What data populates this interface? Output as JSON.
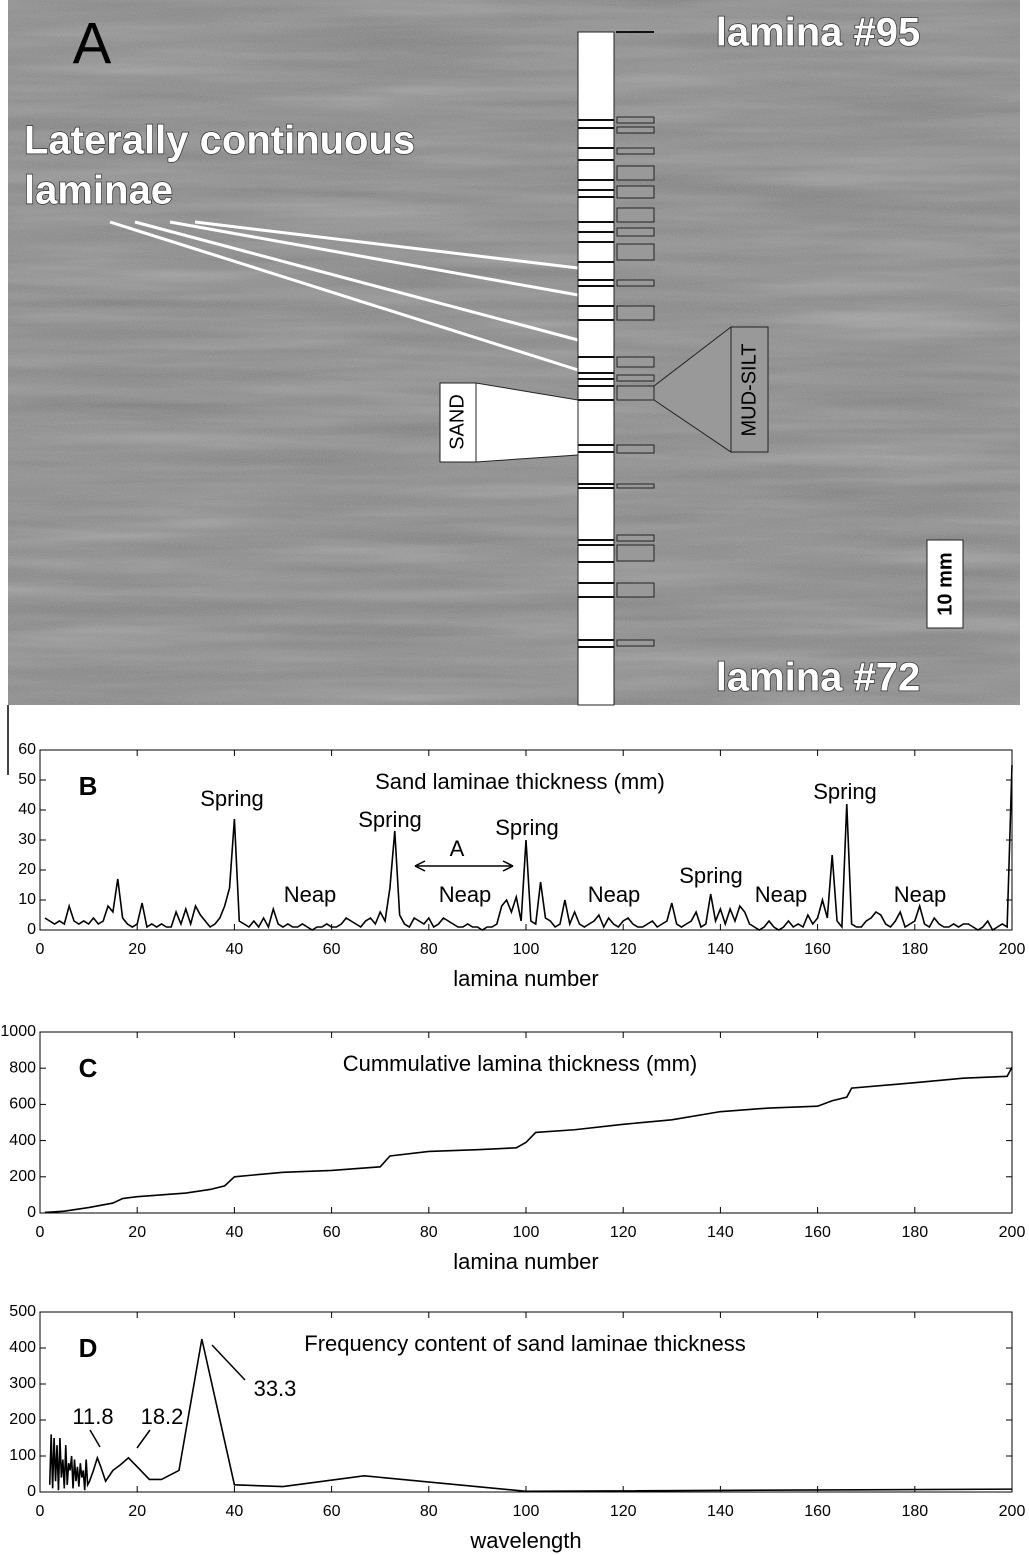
{
  "panel_a": {
    "label": "A",
    "top_lamina": "lamina #95",
    "bottom_lamina": "lamina #72",
    "annotation_lines": [
      "Laterally continuous",
      "laminae"
    ],
    "sand": "SAND",
    "mud_silt": "MUD-SILT",
    "scale_bar": "10 mm"
  },
  "chart_data": [
    {
      "type": "line",
      "panel_label": "B",
      "title": "Sand laminae thickness (mm)",
      "x_label": "lamina number",
      "color": "#000000",
      "annotations": [
        "Spring",
        "Spring",
        "Spring",
        "Spring",
        "Spring",
        "Neap",
        "Neap",
        "Neap",
        "Neap",
        "Neap",
        "A"
      ],
      "x": [
        1,
        2,
        3,
        4,
        5,
        6,
        7,
        8,
        9,
        10,
        11,
        12,
        13,
        14,
        15,
        16,
        17,
        18,
        19,
        20,
        21,
        22,
        23,
        24,
        25,
        26,
        27,
        28,
        29,
        30,
        31,
        32,
        33,
        34,
        35,
        36,
        37,
        38,
        39,
        40,
        41,
        42,
        43,
        44,
        45,
        46,
        47,
        48,
        49,
        50,
        51,
        52,
        53,
        54,
        55,
        56,
        57,
        58,
        59,
        60,
        61,
        62,
        63,
        64,
        65,
        66,
        67,
        68,
        69,
        70,
        71,
        72,
        73,
        74,
        75,
        76,
        77,
        78,
        79,
        80,
        81,
        82,
        83,
        84,
        85,
        86,
        87,
        88,
        89,
        90,
        91,
        92,
        93,
        94,
        95,
        96,
        97,
        98,
        99,
        100,
        101,
        102,
        103,
        104,
        105,
        106,
        107,
        108,
        109,
        110,
        111,
        112,
        113,
        114,
        115,
        116,
        117,
        118,
        119,
        120,
        121,
        122,
        123,
        124,
        125,
        126,
        127,
        128,
        129,
        130,
        131,
        132,
        133,
        134,
        135,
        136,
        137,
        138,
        139,
        140,
        141,
        142,
        143,
        144,
        145,
        146,
        147,
        148,
        149,
        150,
        151,
        152,
        153,
        154,
        155,
        156,
        157,
        158,
        159,
        160,
        161,
        162,
        163,
        164,
        165,
        166,
        167,
        168,
        169,
        170,
        171,
        172,
        173,
        174,
        175,
        176,
        177,
        178,
        179,
        180,
        181,
        182,
        183,
        184,
        185,
        186,
        187,
        188,
        189,
        190,
        191,
        192,
        193,
        194,
        195,
        196,
        197,
        198,
        199,
        200
      ],
      "values": [
        4,
        3,
        2,
        3,
        2,
        8,
        3,
        2,
        3,
        2,
        4,
        2,
        3,
        8,
        6,
        17,
        4,
        2,
        1,
        2,
        9,
        1,
        2,
        1,
        2,
        1,
        1,
        6,
        2,
        7,
        2,
        8,
        5,
        3,
        1,
        2,
        4,
        8,
        14,
        37,
        3,
        2,
        1,
        3,
        1,
        4,
        1,
        7,
        2,
        1,
        2,
        1,
        1,
        2,
        1,
        0,
        1,
        1,
        2,
        1,
        1,
        2,
        4,
        3,
        2,
        1,
        3,
        4,
        2,
        6,
        3,
        14,
        33,
        5,
        2,
        1,
        4,
        3,
        2,
        4,
        1,
        2,
        4,
        3,
        2,
        1,
        1,
        2,
        1,
        1,
        0,
        1,
        1,
        2,
        8,
        10,
        6,
        11,
        3,
        30,
        3,
        2,
        16,
        4,
        3,
        1,
        2,
        10,
        2,
        6,
        2,
        1,
        2,
        3,
        5,
        1,
        4,
        2,
        1,
        3,
        4,
        2,
        1,
        1,
        2,
        3,
        1,
        2,
        3,
        9,
        2,
        1,
        2,
        3,
        6,
        1,
        2,
        12,
        3,
        7,
        2,
        7,
        3,
        8,
        6,
        2,
        1,
        0,
        1,
        3,
        1,
        0,
        1,
        3,
        1,
        2,
        1,
        5,
        2,
        4,
        10,
        4,
        25,
        3,
        1,
        42,
        2,
        1,
        1,
        3,
        4,
        6,
        5,
        2,
        1,
        3,
        6,
        1,
        2,
        3,
        8,
        2,
        1,
        4,
        2,
        1,
        1,
        2,
        1,
        2,
        2,
        1,
        0,
        1,
        3,
        0,
        1,
        2,
        1,
        55
      ],
      "xlim": [
        0,
        200
      ],
      "xticks": [
        0,
        20,
        40,
        60,
        80,
        100,
        120,
        140,
        160,
        180,
        200
      ],
      "ylim": [
        0,
        60
      ],
      "yticks": [
        0,
        10,
        20,
        30,
        40,
        50,
        60
      ]
    },
    {
      "type": "line",
      "panel_label": "C",
      "title": "Cummulative lamina thickness (mm)",
      "x_label": "lamina number",
      "color": "#000000",
      "x": [
        1,
        5,
        10,
        15,
        17,
        20,
        30,
        35,
        38,
        40,
        50,
        60,
        70,
        72,
        80,
        90,
        98,
        100,
        102,
        110,
        120,
        130,
        140,
        150,
        160,
        163,
        166,
        167,
        180,
        190,
        199,
        200
      ],
      "values": [
        3,
        10,
        30,
        55,
        80,
        90,
        110,
        130,
        150,
        200,
        225,
        235,
        255,
        315,
        340,
        350,
        360,
        390,
        445,
        460,
        490,
        515,
        560,
        580,
        590,
        620,
        640,
        690,
        720,
        745,
        755,
        805
      ],
      "xlim": [
        0,
        200
      ],
      "xticks": [
        0,
        20,
        40,
        60,
        80,
        100,
        120,
        140,
        160,
        180,
        200
      ],
      "ylim": [
        0,
        1000
      ],
      "yticks": [
        0,
        200,
        400,
        600,
        800,
        1000
      ]
    },
    {
      "type": "line",
      "panel_label": "D",
      "title": "Frequency content of sand laminae thickness",
      "x_label": "wavelength",
      "color": "#000000",
      "annotations": [
        "11.8",
        "18.2",
        "33.3"
      ],
      "x": [
        2,
        2.3,
        2.6,
        2.9,
        3.2,
        3.5,
        3.8,
        4.1,
        4.4,
        4.7,
        5,
        5.3,
        5.6,
        5.9,
        6.2,
        6.5,
        6.8,
        7.1,
        7.4,
        7.7,
        8,
        8.3,
        8.6,
        8.9,
        9.2,
        9.5,
        9.8,
        10.2,
        11,
        11.8,
        12.5,
        13.5,
        15,
        16.5,
        18.2,
        20,
        22.5,
        25,
        28.6,
        33.3,
        40,
        50,
        66.7,
        100,
        200
      ],
      "values": [
        20,
        160,
        10,
        150,
        30,
        130,
        5,
        150,
        40,
        90,
        10,
        130,
        20,
        80,
        60,
        100,
        10,
        90,
        30,
        70,
        15,
        80,
        40,
        60,
        5,
        90,
        20,
        30,
        60,
        95,
        70,
        30,
        60,
        75,
        95,
        70,
        35,
        35,
        60,
        425,
        20,
        15,
        45,
        2,
        8
      ],
      "xlim": [
        0,
        200
      ],
      "xticks": [
        0,
        20,
        40,
        60,
        80,
        100,
        120,
        140,
        160,
        180,
        200
      ],
      "ylim": [
        0,
        500
      ],
      "yticks": [
        0,
        100,
        200,
        300,
        400,
        500
      ]
    }
  ]
}
